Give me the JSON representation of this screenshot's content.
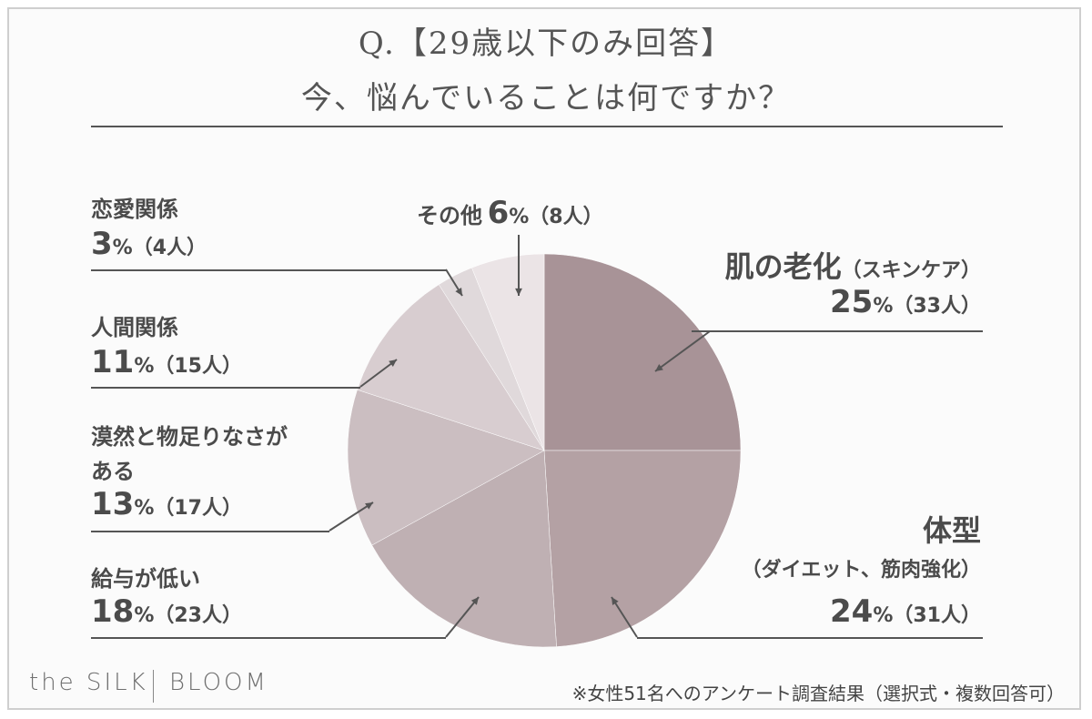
{
  "title": {
    "line1": "Q.【29歳以下のみ回答】",
    "line2": "今、悩んでいることは何ですか？"
  },
  "chart_data": {
    "type": "pie",
    "title": "Q.【29歳以下のみ回答】今、悩んでいることは何ですか？",
    "slices": [
      {
        "label": "肌の老化",
        "sublabel": "（スキンケア）",
        "percent": 25,
        "count": "（33人）",
        "color": "#a89397"
      },
      {
        "label": "体型",
        "sublabel": "（ダイエット、筋肉強化）",
        "percent": 24,
        "count": "（31人）",
        "color": "#b4a1a4"
      },
      {
        "label": "給与が低い",
        "sublabel": "",
        "percent": 18,
        "count": "（23人）",
        "color": "#bfb0b3"
      },
      {
        "label": "漠然と物足りなさがある",
        "sublabel": "",
        "percent": 13,
        "count": "（17人）",
        "color": "#cbbec1"
      },
      {
        "label": "人間関係",
        "sublabel": "",
        "percent": 11,
        "count": "（15人）",
        "color": "#d8cdd0"
      },
      {
        "label": "恋愛関係",
        "sublabel": "",
        "percent": 3,
        "count": "（4人）",
        "color": "#e0d9db"
      },
      {
        "label": "その他",
        "sublabel": "",
        "percent": 6,
        "count": "（8人）",
        "color": "#ebe4e6"
      }
    ]
  },
  "labels": {
    "skin": {
      "name": "肌の老化",
      "sub": "（スキンケア）",
      "pct": "25",
      "unit": "%",
      "cnt": "（33人）"
    },
    "body": {
      "name": "体型",
      "sub": "（ダイエット、筋肉強化）",
      "pct": "24",
      "unit": "%",
      "cnt": "（31人）"
    },
    "salary": {
      "name": "給与が低い",
      "pct": "18",
      "unit": "%",
      "cnt": "（23人）"
    },
    "vague": {
      "name1": "漠然と物足りなさが",
      "name2": "ある",
      "pct": "13",
      "unit": "%",
      "cnt": "（17人）"
    },
    "human": {
      "name": "人間関係",
      "pct": "11",
      "unit": "%",
      "cnt": "（15人）"
    },
    "love": {
      "name": "恋愛関係",
      "pct": "3",
      "unit": "%",
      "cnt": "（4人）"
    },
    "other": {
      "name": "その他",
      "pct": "6",
      "unit": "%",
      "cnt": "（8人）"
    }
  },
  "footer": {
    "brand1": "the SILK",
    "brand2": "BLOOM",
    "note": "※女性51名へのアンケート調査結果（選択式・複数回答可）"
  }
}
